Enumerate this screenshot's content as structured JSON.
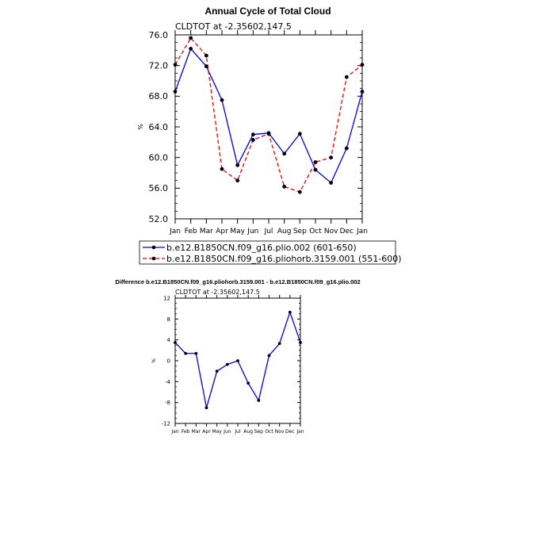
{
  "chart_data": [
    {
      "type": "line",
      "title": "Annual Cycle of Total Cloud",
      "subtitle": "CLDTOT at -2.35602,147.5",
      "ylabel": "%",
      "xlabel": "",
      "ylim": [
        52.0,
        76.0
      ],
      "yticks": [
        "52.0",
        "56.0",
        "60.0",
        "64.0",
        "68.0",
        "72.0",
        "76.0"
      ],
      "categories": [
        "Jan",
        "Feb",
        "Mar",
        "Apr",
        "May",
        "Jun",
        "Jul",
        "Aug",
        "Sep",
        "Oct",
        "Nov",
        "Dec",
        "Jan"
      ],
      "legend_position": "bottom",
      "series": [
        {
          "name": "b.e12.B1850CN.f09_g16.plio.002 (601-650)",
          "color": "#0000ff",
          "dash": "solid",
          "values": [
            68.6,
            74.2,
            71.9,
            67.5,
            59.0,
            63.0,
            63.2,
            60.5,
            63.1,
            58.4,
            56.7,
            61.2,
            68.6
          ]
        },
        {
          "name": "b.e12.B1850CN.f09_g16.pliohorb.3159.001 (551-600)",
          "color": "#ff0000",
          "dash": "dashed",
          "values": [
            72.1,
            75.6,
            73.3,
            58.5,
            57.0,
            62.3,
            63.1,
            56.2,
            55.5,
            59.4,
            60.0,
            70.5,
            72.1
          ]
        }
      ]
    },
    {
      "type": "line",
      "title": "Difference b.e12.B1850CN.f09_g16.pliohorb.3159.001 - b.e12.B1850CN.f09_g16.plio.002",
      "subtitle": "CLDTOT at -2.35602,147.5",
      "ylabel": "%",
      "xlabel": "",
      "ylim": [
        -12,
        12
      ],
      "yticks": [
        "-12",
        "-8",
        "-4",
        "0",
        "4",
        "8",
        "12"
      ],
      "categories": [
        "Jan",
        "Feb",
        "Mar",
        "Apr",
        "May",
        "Jun",
        "Jul",
        "Aug",
        "Sep",
        "Oct",
        "Nov",
        "Dec",
        "Jan"
      ],
      "series": [
        {
          "color": "#0000ff",
          "dash": "solid",
          "values": [
            3.5,
            1.4,
            1.4,
            -9.0,
            -2.0,
            -0.7,
            0.0,
            -4.3,
            -7.6,
            1.0,
            3.3,
            9.3,
            3.5
          ]
        }
      ]
    }
  ]
}
